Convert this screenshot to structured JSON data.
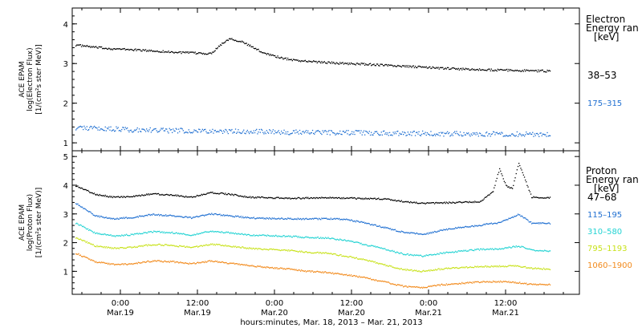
{
  "x_axis": {
    "label": "hours:minutes, Mar. 18, 2013 – Mar. 21, 2013",
    "ticks": [
      {
        "hour": 0,
        "time": "0:00",
        "date": "Mar.19"
      },
      {
        "hour": 12,
        "time": "12:00",
        "date": "Mar.19"
      },
      {
        "hour": 24,
        "time": "0:00",
        "date": "Mar.20"
      },
      {
        "hour": 36,
        "time": "12:00",
        "date": "Mar.20"
      },
      {
        "hour": 48,
        "time": "0:00",
        "date": "Mar.21"
      },
      {
        "hour": 60,
        "time": "12:00",
        "date": "Mar.21"
      }
    ]
  },
  "chart_data": [
    {
      "type": "scatter",
      "ylabel": [
        "ACE EPAM",
        "log(Electron Flux)",
        "[1/(cm²s ster MeV)]"
      ],
      "ylim": [
        0.8,
        4.4
      ],
      "yticks": [
        1,
        2,
        3,
        4
      ],
      "xlim": [
        -7.5,
        71.5
      ],
      "legend": {
        "title": [
          "Electron",
          "Energy ran",
          "[keV]"
        ]
      },
      "series": [
        {
          "name": "38–53",
          "color": "#000000",
          "x": [
            -7,
            -4,
            -1,
            2,
            5,
            8,
            11,
            14,
            15.5,
            17,
            19,
            22,
            25,
            28,
            31,
            34,
            37,
            40,
            43,
            46,
            49,
            52,
            55,
            58,
            61,
            64,
            67
          ],
          "y": [
            3.48,
            3.42,
            3.38,
            3.36,
            3.33,
            3.3,
            3.28,
            3.26,
            3.48,
            3.65,
            3.55,
            3.3,
            3.15,
            3.08,
            3.05,
            3.02,
            3.0,
            2.98,
            2.95,
            2.93,
            2.9,
            2.88,
            2.86,
            2.85,
            2.84,
            2.83,
            2.82
          ]
        },
        {
          "name": "175–315",
          "color": "#1f6fd1",
          "x": [
            -7,
            -4,
            -1,
            2,
            5,
            8,
            11,
            14,
            17,
            20,
            23,
            26,
            29,
            32,
            35,
            38,
            41,
            44,
            47,
            50,
            53,
            56,
            59,
            62,
            65,
            67
          ],
          "y": [
            1.4,
            1.38,
            1.36,
            1.34,
            1.33,
            1.32,
            1.32,
            1.31,
            1.3,
            1.3,
            1.29,
            1.28,
            1.28,
            1.27,
            1.27,
            1.26,
            1.26,
            1.25,
            1.25,
            1.24,
            1.24,
            1.24,
            1.23,
            1.23,
            1.22,
            1.22
          ]
        }
      ]
    },
    {
      "type": "scatter",
      "ylabel": [
        "ACE EPAM",
        "log(Proton Flux)",
        "[1/(cm²s ster MeV)]"
      ],
      "ylim": [
        0.2,
        5.2
      ],
      "yticks": [
        1,
        2,
        3,
        4,
        5
      ],
      "xlim": [
        -7.5,
        71.5
      ],
      "legend": {
        "title": [
          "Proton",
          "Energy ran",
          "[keV]"
        ]
      },
      "series": [
        {
          "name": "47–68",
          "color": "#000000",
          "x": [
            -7,
            -4,
            -1,
            2,
            5,
            8,
            11,
            14,
            17,
            20,
            23,
            26,
            29,
            32,
            35,
            38,
            41,
            44,
            47,
            50,
            53,
            56,
            58,
            59,
            60,
            61,
            62,
            63,
            64,
            67
          ],
          "y": [
            4.0,
            3.7,
            3.6,
            3.62,
            3.72,
            3.68,
            3.6,
            3.76,
            3.7,
            3.6,
            3.58,
            3.56,
            3.57,
            3.58,
            3.57,
            3.55,
            3.54,
            3.45,
            3.38,
            3.4,
            3.42,
            3.45,
            3.8,
            4.6,
            4.0,
            3.9,
            4.8,
            4.2,
            3.6,
            3.58
          ]
        },
        {
          "name": "115–195",
          "color": "#1f6fd1",
          "x": [
            -7,
            -4,
            -1,
            2,
            5,
            8,
            11,
            14,
            17,
            20,
            23,
            26,
            29,
            32,
            35,
            38,
            41,
            44,
            47,
            50,
            53,
            56,
            59,
            62,
            64,
            67
          ],
          "y": [
            3.4,
            2.95,
            2.85,
            2.9,
            3.0,
            2.95,
            2.88,
            3.02,
            2.95,
            2.88,
            2.86,
            2.85,
            2.84,
            2.85,
            2.83,
            2.7,
            2.55,
            2.38,
            2.3,
            2.45,
            2.55,
            2.62,
            2.72,
            3.0,
            2.7,
            2.68
          ]
        },
        {
          "name": "310–580",
          "color": "#22d3d3",
          "x": [
            -7,
            -4,
            -1,
            2,
            5,
            8,
            11,
            14,
            17,
            20,
            23,
            26,
            29,
            32,
            35,
            38,
            41,
            44,
            47,
            50,
            53,
            56,
            59,
            62,
            64,
            67
          ],
          "y": [
            2.7,
            2.35,
            2.25,
            2.3,
            2.4,
            2.36,
            2.28,
            2.42,
            2.36,
            2.28,
            2.26,
            2.24,
            2.2,
            2.18,
            2.1,
            1.95,
            1.8,
            1.62,
            1.55,
            1.65,
            1.72,
            1.78,
            1.8,
            1.9,
            1.75,
            1.72
          ]
        },
        {
          "name": "795–1193",
          "color": "#c8e21a",
          "x": [
            -7,
            -4,
            -1,
            2,
            5,
            8,
            11,
            14,
            17,
            20,
            23,
            26,
            29,
            32,
            35,
            38,
            41,
            44,
            47,
            50,
            53,
            56,
            59,
            62,
            64,
            67
          ],
          "y": [
            2.2,
            1.9,
            1.82,
            1.86,
            1.95,
            1.92,
            1.85,
            1.96,
            1.9,
            1.82,
            1.78,
            1.75,
            1.68,
            1.65,
            1.55,
            1.42,
            1.25,
            1.08,
            1.02,
            1.1,
            1.15,
            1.18,
            1.2,
            1.2,
            1.12,
            1.1
          ]
        },
        {
          "name": "1060–1900",
          "color": "#f28a1c",
          "x": [
            -7,
            -4,
            -1,
            2,
            5,
            8,
            11,
            14,
            17,
            20,
            23,
            26,
            29,
            32,
            35,
            38,
            41,
            44,
            47,
            50,
            53,
            56,
            59,
            62,
            64,
            67
          ],
          "y": [
            1.65,
            1.35,
            1.25,
            1.28,
            1.38,
            1.35,
            1.28,
            1.38,
            1.3,
            1.22,
            1.15,
            1.1,
            1.02,
            0.98,
            0.9,
            0.8,
            0.65,
            0.5,
            0.45,
            0.55,
            0.6,
            0.65,
            0.66,
            0.62,
            0.56,
            0.55
          ]
        }
      ]
    }
  ]
}
